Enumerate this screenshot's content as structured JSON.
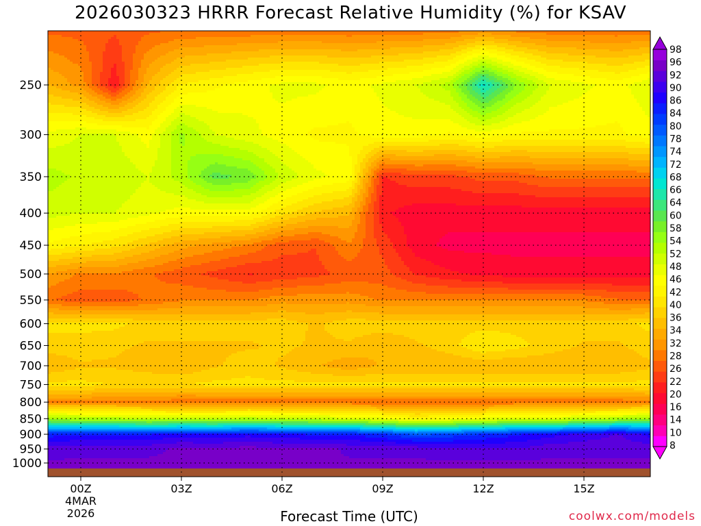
{
  "chart_data": {
    "type": "heatmap",
    "title": "2026030323 HRRR Forecast Relative Humidity (%) for KSAV",
    "xlabel": "Forecast Time (UTC)",
    "ylabel": "",
    "y_scale": "log",
    "y_inverted": true,
    "y_ticks": [
      "250",
      "300",
      "350",
      "400",
      "450",
      "500",
      "550",
      "600",
      "650",
      "700",
      "750",
      "800",
      "850",
      "900",
      "950",
      "1000"
    ],
    "x_ticks": [
      {
        "label": "00Z",
        "sub1": "4MAR",
        "sub2": "2026"
      },
      {
        "label": "03Z",
        "sub1": "",
        "sub2": ""
      },
      {
        "label": "06Z",
        "sub1": "",
        "sub2": ""
      },
      {
        "label": "09Z",
        "sub1": "",
        "sub2": ""
      },
      {
        "label": "12Z",
        "sub1": "",
        "sub2": ""
      },
      {
        "label": "15Z",
        "sub1": "",
        "sub2": ""
      }
    ],
    "colorbar_levels": [
      "98",
      "96",
      "92",
      "90",
      "86",
      "84",
      "80",
      "78",
      "74",
      "72",
      "68",
      "66",
      "64",
      "60",
      "58",
      "54",
      "52",
      "48",
      "46",
      "42",
      "40",
      "36",
      "34",
      "32",
      "28",
      "26",
      "22",
      "20",
      "16",
      "14",
      "10",
      "8"
    ],
    "profile_columns": [
      "hour",
      "250",
      "300",
      "350",
      "400",
      "450",
      "500",
      "550",
      "600",
      "650",
      "700",
      "750",
      "800",
      "850",
      "900",
      "950",
      "1000"
    ],
    "profiles": [
      [
        -1,
        30,
        44,
        50,
        47,
        40,
        27,
        22,
        36,
        34,
        30,
        36,
        24,
        52,
        85,
        93,
        95
      ],
      [
        0,
        26,
        46,
        48,
        46,
        38,
        24,
        20,
        36,
        34,
        32,
        36,
        24,
        50,
        86,
        94,
        95
      ],
      [
        1,
        14,
        46,
        48,
        46,
        36,
        24,
        20,
        36,
        33,
        32,
        35,
        24,
        50,
        86,
        94,
        95
      ],
      [
        2,
        30,
        42,
        46,
        44,
        32,
        22,
        22,
        34,
        32,
        31,
        35,
        24,
        48,
        86,
        94,
        95
      ],
      [
        3,
        38,
        52,
        50,
        42,
        28,
        20,
        24,
        34,
        32,
        30,
        35,
        22,
        48,
        88,
        95,
        95
      ],
      [
        4,
        40,
        46,
        58,
        42,
        26,
        18,
        24,
        34,
        32,
        32,
        36,
        22,
        48,
        87,
        95,
        95
      ],
      [
        5,
        42,
        44,
        56,
        42,
        24,
        16,
        24,
        34,
        32,
        34,
        36,
        22,
        50,
        88,
        96,
        95
      ],
      [
        6,
        44,
        42,
        48,
        36,
        20,
        17,
        26,
        34,
        33,
        32,
        36,
        22,
        48,
        87,
        95,
        95
      ],
      [
        7,
        44,
        40,
        44,
        32,
        19,
        18,
        26,
        32,
        32,
        30,
        36,
        22,
        48,
        86,
        96,
        95
      ],
      [
        8,
        42,
        40,
        42,
        30,
        24,
        20,
        26,
        34,
        32,
        28,
        36,
        22,
        46,
        86,
        94,
        95
      ],
      [
        9,
        44,
        42,
        16,
        14,
        18,
        20,
        24,
        34,
        30,
        30,
        36,
        22,
        44,
        84,
        94,
        95
      ],
      [
        10,
        46,
        42,
        18,
        12,
        12,
        16,
        24,
        34,
        32,
        30,
        36,
        22,
        40,
        80,
        94,
        95
      ],
      [
        11,
        50,
        40,
        18,
        12,
        10,
        14,
        24,
        34,
        34,
        30,
        36,
        22,
        42,
        82,
        92,
        95
      ],
      [
        12,
        66,
        42,
        20,
        12,
        10,
        13,
        24,
        34,
        38,
        30,
        36,
        22,
        44,
        84,
        92,
        95
      ],
      [
        13,
        54,
        40,
        20,
        12,
        10,
        12,
        24,
        34,
        36,
        30,
        36,
        22,
        46,
        86,
        92,
        95
      ],
      [
        14,
        46,
        40,
        22,
        12,
        10,
        12,
        24,
        34,
        34,
        30,
        36,
        22,
        46,
        88,
        94,
        95
      ],
      [
        15,
        44,
        40,
        22,
        12,
        10,
        12,
        24,
        34,
        32,
        30,
        36,
        22,
        48,
        90,
        94,
        95
      ],
      [
        16,
        42,
        40,
        22,
        12,
        10,
        12,
        22,
        34,
        32,
        30,
        36,
        22,
        50,
        92,
        94,
        95
      ],
      [
        17,
        46,
        42,
        22,
        12,
        10,
        12,
        22,
        36,
        34,
        32,
        36,
        24,
        52,
        88,
        94,
        95
      ]
    ],
    "top_row_rh": 20,
    "grid": true,
    "legend": "right colorbar"
  },
  "credit": "coolwx.com/models",
  "colors": {
    "ground": "#a0522d",
    "credit": "#e0284a",
    "palette": [
      "#ff00ff",
      "#ff00b4",
      "#ff007f",
      "#ff0055",
      "#ff0a32",
      "#ff1e1e",
      "#ff3c14",
      "#ff5a0a",
      "#ff7800",
      "#ff9600",
      "#ffaa00",
      "#ffbe00",
      "#ffd200",
      "#ffe600",
      "#fff500",
      "#ffff00",
      "#eaff00",
      "#d0ff00",
      "#b4ff00",
      "#96ff14",
      "#78f028",
      "#5ae650",
      "#3ce67c",
      "#1ee6aa",
      "#00e6d2",
      "#00d2f0",
      "#00b4ff",
      "#0096ff",
      "#0078ff",
      "#005aff",
      "#003cff",
      "#0a1eff",
      "#1e00ff",
      "#3c00f0",
      "#5a00dc",
      "#7800c8",
      "#9600dc"
    ]
  }
}
